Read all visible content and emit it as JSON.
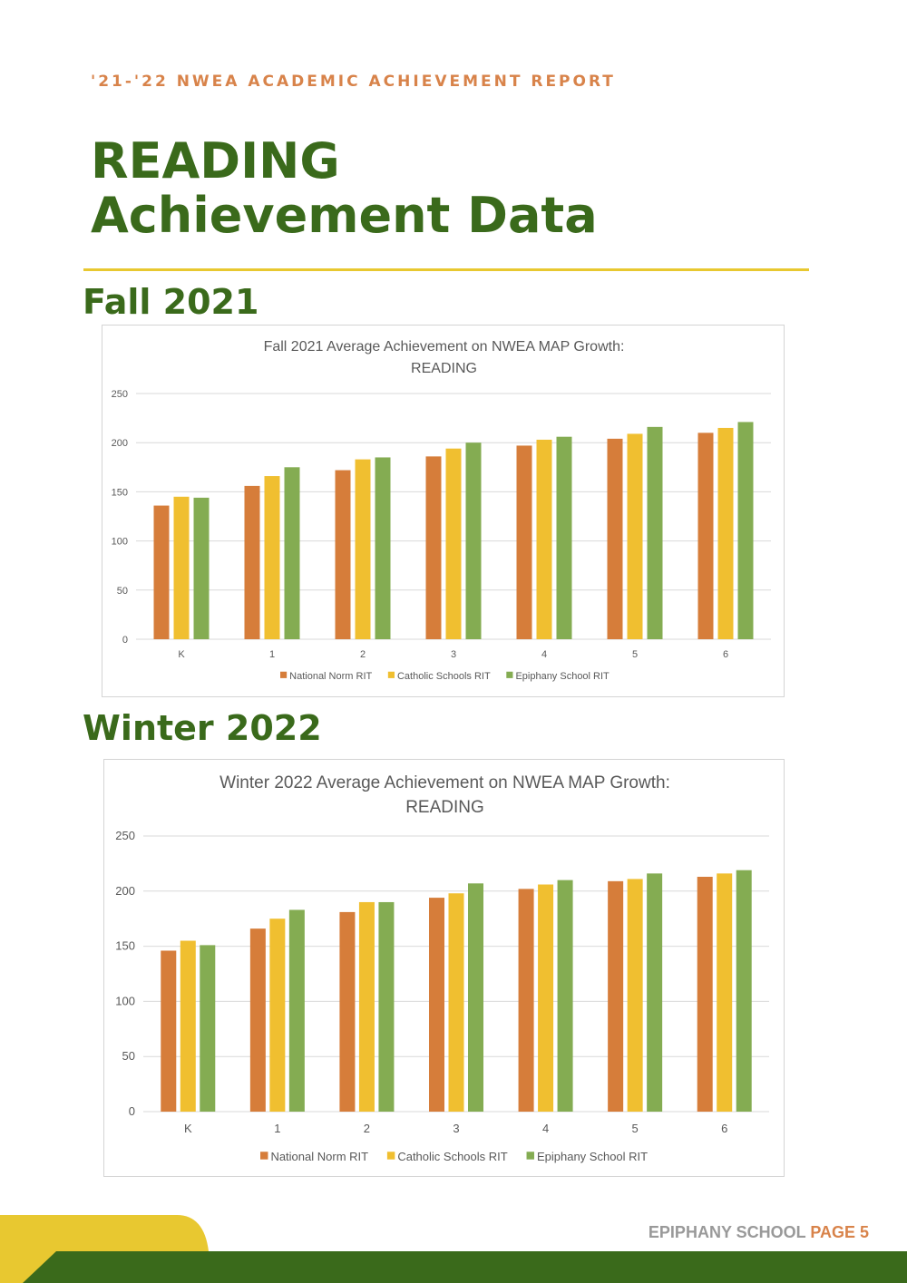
{
  "header": {
    "kicker": "'21-'22 NWEA ACADEMIC ACHIEVEMENT REPORT",
    "title_line1": "READING",
    "title_line2": "Achievement Data"
  },
  "sections": [
    {
      "heading": "Fall 2021"
    },
    {
      "heading": "Winter 2022"
    }
  ],
  "colors": {
    "national": "#d67d3a",
    "catholic": "#f0bf30",
    "epiphany": "#84ac52",
    "accent_yellow": "#e8c830",
    "brand_green": "#3a6a1b",
    "accent_orange": "#d8834a"
  },
  "chart_data": [
    {
      "type": "bar",
      "title": "Fall 2021 Average Achievement on NWEA MAP Growth:",
      "subtitle": "READING",
      "categories": [
        "K",
        "1",
        "2",
        "3",
        "4",
        "5",
        "6"
      ],
      "ylim": [
        0,
        250
      ],
      "yticks": [
        0,
        50,
        100,
        150,
        200,
        250
      ],
      "grid": true,
      "legend": "bottom",
      "series": [
        {
          "name": "National Norm RIT",
          "values": [
            136,
            156,
            172,
            186,
            197,
            204,
            210
          ]
        },
        {
          "name": "Catholic Schools RIT",
          "values": [
            145,
            166,
            183,
            194,
            203,
            209,
            215
          ]
        },
        {
          "name": "Epiphany School RIT",
          "values": [
            144,
            175,
            185,
            200,
            206,
            216,
            221
          ]
        }
      ]
    },
    {
      "type": "bar",
      "title": "Winter 2022 Average Achievement on NWEA MAP Growth:",
      "subtitle": "READING",
      "categories": [
        "K",
        "1",
        "2",
        "3",
        "4",
        "5",
        "6"
      ],
      "ylim": [
        0,
        250
      ],
      "yticks": [
        0,
        50,
        100,
        150,
        200,
        250
      ],
      "grid": true,
      "legend": "bottom",
      "series": [
        {
          "name": "National Norm RIT",
          "values": [
            146,
            166,
            181,
            194,
            202,
            209,
            213
          ]
        },
        {
          "name": "Catholic Schools RIT",
          "values": [
            155,
            175,
            190,
            198,
            206,
            211,
            216
          ]
        },
        {
          "name": "Epiphany School RIT",
          "values": [
            151,
            183,
            190,
            207,
            210,
            216,
            219
          ]
        }
      ]
    }
  ],
  "footer": {
    "school": "EPIPHANY SCHOOL",
    "page": "PAGE 5"
  }
}
